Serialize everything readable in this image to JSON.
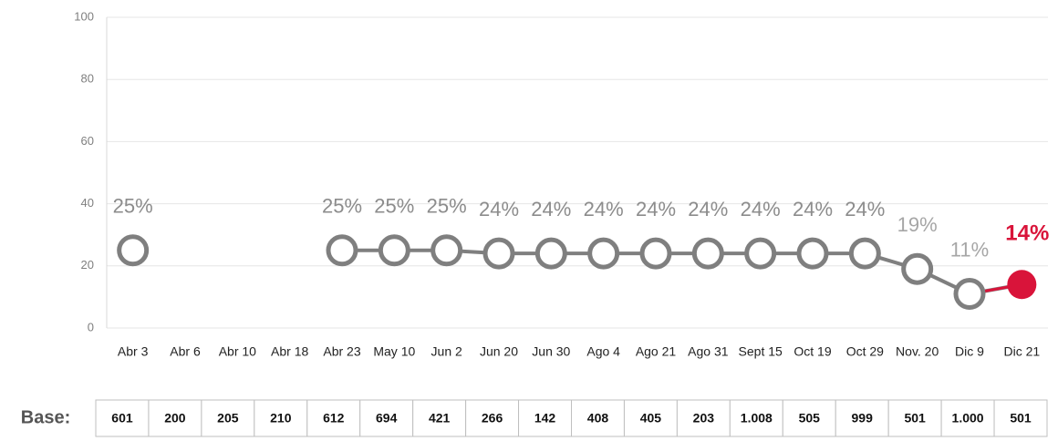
{
  "chart_data": {
    "type": "line",
    "categories": [
      "Abr 3",
      "Abr 6",
      "Abr 10",
      "Abr 18",
      "Abr 23",
      "May 10",
      "Jun 2",
      "Jun 20",
      "Jun 30",
      "Ago 4",
      "Ago 21",
      "Ago 31",
      "Sept 15",
      "Oct 19",
      "Oct 29",
      "Nov. 20",
      "Dic 9",
      "Dic 21"
    ],
    "series": [
      {
        "color": "#7f7f7f",
        "highlight_color": "#d9143a",
        "values": [
          25,
          null,
          null,
          null,
          25,
          25,
          25,
          24,
          24,
          24,
          24,
          24,
          24,
          24,
          24,
          19,
          11,
          14
        ],
        "value_labels": [
          "25%",
          null,
          null,
          null,
          "25%",
          "25%",
          "25%",
          "24%",
          "24%",
          "24%",
          "24%",
          "24%",
          "24%",
          "24%",
          "24%",
          "19%",
          "11%",
          "14%"
        ]
      }
    ],
    "ylim": [
      0,
      100
    ],
    "yticks": [
      0,
      20,
      40,
      60,
      80,
      100
    ],
    "grid": true,
    "base": {
      "label": "Base:",
      "values": [
        "601",
        "200",
        "205",
        "210",
        "612",
        "694",
        "421",
        "266",
        "142",
        "408",
        "405",
        "203",
        "1.008",
        "505",
        "999",
        "501",
        "1.000",
        "501"
      ]
    }
  }
}
